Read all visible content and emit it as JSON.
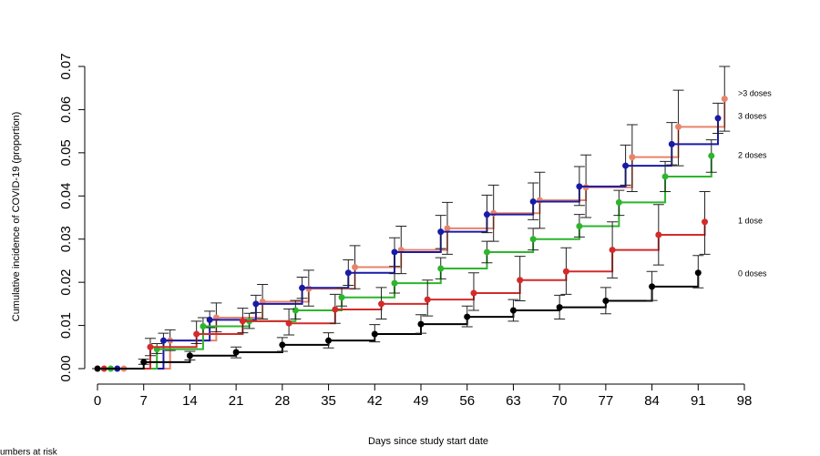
{
  "chart_data": {
    "type": "step",
    "xlabel": "Days since study start date",
    "ylabel": "Cumulative incidence of COVID-19 (proportion)",
    "note": "umbers at risk",
    "xlim": [
      0,
      98
    ],
    "xticks": [
      0,
      7,
      14,
      21,
      28,
      35,
      42,
      49,
      56,
      63,
      70,
      77,
      84,
      91,
      98
    ],
    "ylim": [
      0,
      0.07
    ],
    "yticks": [
      {
        "value": 0,
        "label": "0.00"
      },
      0.01,
      0.02,
      0.03,
      0.04,
      0.05,
      0.06,
      0.07
    ],
    "series": [
      {
        "name": ">3 doses",
        "color": "#e8836a",
        "x": [
          4,
          11,
          18,
          25,
          32,
          39,
          46,
          53,
          60,
          67,
          74,
          81,
          88,
          95
        ],
        "values": [
          0,
          0.0065,
          0.0118,
          0.0155,
          0.0185,
          0.0235,
          0.0275,
          0.0325,
          0.036,
          0.039,
          0.042,
          0.049,
          0.056,
          0.0625
        ],
        "ci_lower": [
          0,
          0.0042,
          0.0085,
          0.0115,
          0.0145,
          0.0185,
          0.022,
          0.0265,
          0.0295,
          0.0325,
          0.035,
          0.041,
          0.047,
          0.055
        ],
        "ci_upper": [
          0,
          0.009,
          0.0152,
          0.0195,
          0.0228,
          0.0285,
          0.033,
          0.0385,
          0.0425,
          0.0455,
          0.0495,
          0.0565,
          0.0645,
          0.07
        ]
      },
      {
        "name": "3 doses",
        "color": "#1a1aa8",
        "x": [
          3,
          10,
          17,
          24,
          31,
          38,
          45,
          52,
          59,
          66,
          73,
          80,
          87,
          94
        ],
        "values": [
          0,
          0.0065,
          0.0113,
          0.015,
          0.0187,
          0.0222,
          0.027,
          0.0317,
          0.0357,
          0.0387,
          0.0422,
          0.047,
          0.052,
          0.058
        ],
        "ci_lower": [
          0,
          0.005,
          0.0095,
          0.013,
          0.0163,
          0.0193,
          0.0237,
          0.0278,
          0.0315,
          0.0345,
          0.0378,
          0.0425,
          0.0472,
          0.0545
        ],
        "ci_upper": [
          0,
          0.0082,
          0.0133,
          0.017,
          0.0212,
          0.0252,
          0.0303,
          0.0355,
          0.0402,
          0.043,
          0.0468,
          0.0518,
          0.057,
          0.0615
        ]
      },
      {
        "name": "2 doses",
        "color": "#2db52d",
        "x": [
          2,
          9,
          16,
          23,
          30,
          37,
          45,
          52,
          59,
          66,
          73,
          79,
          86,
          93
        ],
        "values": [
          0,
          0.0045,
          0.0098,
          0.011,
          0.0135,
          0.0165,
          0.0198,
          0.0232,
          0.027,
          0.03,
          0.033,
          0.0385,
          0.0445,
          0.0493
        ],
        "ci_lower": [
          0,
          0.0035,
          0.008,
          0.0093,
          0.0115,
          0.0145,
          0.0175,
          0.0208,
          0.0245,
          0.0275,
          0.0305,
          0.0355,
          0.041,
          0.0455
        ],
        "ci_upper": [
          0,
          0.0058,
          0.0118,
          0.0128,
          0.0158,
          0.0187,
          0.022,
          0.0257,
          0.0295,
          0.0325,
          0.0357,
          0.0413,
          0.048,
          0.053
        ]
      },
      {
        "name": "1 dose",
        "color": "#d42a2a",
        "x": [
          1,
          8,
          15,
          22,
          29,
          36,
          43,
          50,
          57,
          64,
          71,
          78,
          85,
          92
        ],
        "values": [
          0,
          0.005,
          0.008,
          0.011,
          0.0105,
          0.0137,
          0.015,
          0.016,
          0.0175,
          0.0205,
          0.0225,
          0.0275,
          0.031,
          0.034
        ],
        "ci_lower": [
          0,
          0.003,
          0.0058,
          0.0083,
          0.0078,
          0.0105,
          0.0115,
          0.0122,
          0.0135,
          0.0157,
          0.0172,
          0.021,
          0.024,
          0.0265
        ],
        "ci_upper": [
          0,
          0.007,
          0.011,
          0.014,
          0.0138,
          0.0172,
          0.0188,
          0.0205,
          0.0222,
          0.026,
          0.028,
          0.034,
          0.038,
          0.041
        ]
      },
      {
        "name": "0 doses",
        "color": "#000000",
        "x": [
          0,
          7,
          14,
          21,
          28,
          35,
          42,
          49,
          56,
          63,
          70,
          77,
          84,
          91
        ],
        "values": [
          0,
          0.0015,
          0.003,
          0.0038,
          0.0055,
          0.0065,
          0.008,
          0.0103,
          0.012,
          0.0135,
          0.0142,
          0.0157,
          0.019,
          0.0222
        ],
        "ci_lower": [
          0,
          0.001,
          0.002,
          0.0025,
          0.004,
          0.0048,
          0.0062,
          0.0082,
          0.0097,
          0.011,
          0.0115,
          0.0127,
          0.0158,
          0.0187
        ],
        "ci_upper": [
          0,
          0.0022,
          0.004,
          0.005,
          0.0072,
          0.0083,
          0.0102,
          0.0125,
          0.0145,
          0.016,
          0.017,
          0.0188,
          0.0225,
          0.0262
        ]
      }
    ]
  }
}
